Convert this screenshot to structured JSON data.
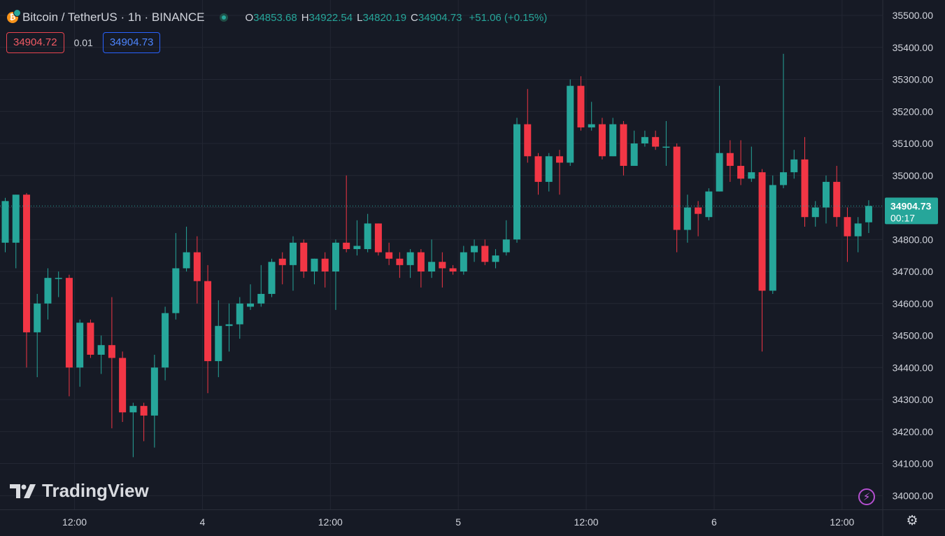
{
  "header": {
    "symbol_title": "Bitcoin / TetherUS · 1h · BINANCE",
    "coin_glyph": "₿",
    "coin_icon": "bitcoin-icon",
    "ohlc": {
      "open_label": "O",
      "open": "34853.68",
      "high_label": "H",
      "high": "34922.54",
      "low_label": "L",
      "low": "34820.19",
      "close_label": "C",
      "close": "34904.73",
      "change": "+51.06 (+0.15%)"
    }
  },
  "quotes": {
    "bid": "34904.72",
    "spread": "0.01",
    "ask": "34904.73"
  },
  "watermark": {
    "text": "TradingView"
  },
  "icons": {
    "lightning": "lightning-icon",
    "settings": "settings-icon"
  },
  "colors": {
    "background": "#161a25",
    "grid": "#232733",
    "up": "#26a69a",
    "down": "#f23645",
    "axis_text": "#d1d4dc",
    "last_price_bg": "#26a69a"
  },
  "chart_data": {
    "type": "candlestick",
    "title": "Bitcoin / TetherUS · 1h · BINANCE",
    "xlabel": "",
    "ylabel": "",
    "ylim": [
      33960,
      35510
    ],
    "y_ticks": [
      35500,
      35400,
      35300,
      35200,
      35100,
      35000,
      34900,
      34800,
      34700,
      34600,
      34500,
      34400,
      34300,
      34200,
      34100,
      34000
    ],
    "x_ticks": [
      {
        "label": "12:00",
        "index": 6.5
      },
      {
        "label": "4",
        "index": 18.5
      },
      {
        "label": "12:00",
        "index": 30.5
      },
      {
        "label": "5",
        "index": 42.5
      },
      {
        "label": "12:00",
        "index": 54.5
      },
      {
        "label": "6",
        "index": 66.5
      },
      {
        "label": "12:00",
        "index": 78.5
      }
    ],
    "grid": true,
    "last_price": {
      "value": 34904.73,
      "label": "34904.73",
      "countdown": "00:17"
    },
    "candles": [
      {
        "o": 34790,
        "h": 34930,
        "l": 34760,
        "c": 34920
      },
      {
        "o": 34790,
        "h": 34940,
        "l": 34710,
        "c": 34940
      },
      {
        "o": 34940,
        "h": 34945,
        "l": 34400,
        "c": 34510
      },
      {
        "o": 34510,
        "h": 34630,
        "l": 34370,
        "c": 34600
      },
      {
        "o": 34600,
        "h": 34710,
        "l": 34550,
        "c": 34680
      },
      {
        "o": 34680,
        "h": 34700,
        "l": 34620,
        "c": 34680
      },
      {
        "o": 34680,
        "h": 34690,
        "l": 34310,
        "c": 34400
      },
      {
        "o": 34400,
        "h": 34550,
        "l": 34340,
        "c": 34540
      },
      {
        "o": 34540,
        "h": 34550,
        "l": 34430,
        "c": 34440
      },
      {
        "o": 34440,
        "h": 34500,
        "l": 34380,
        "c": 34470
      },
      {
        "o": 34470,
        "h": 34620,
        "l": 34210,
        "c": 34430
      },
      {
        "o": 34430,
        "h": 34450,
        "l": 34230,
        "c": 34260
      },
      {
        "o": 34260,
        "h": 34290,
        "l": 34120,
        "c": 34280
      },
      {
        "o": 34280,
        "h": 34290,
        "l": 34170,
        "c": 34250
      },
      {
        "o": 34250,
        "h": 34440,
        "l": 34150,
        "c": 34400
      },
      {
        "o": 34400,
        "h": 34590,
        "l": 34360,
        "c": 34570
      },
      {
        "o": 34570,
        "h": 34820,
        "l": 34550,
        "c": 34710
      },
      {
        "o": 34710,
        "h": 34840,
        "l": 34700,
        "c": 34760
      },
      {
        "o": 34760,
        "h": 34810,
        "l": 34600,
        "c": 34670
      },
      {
        "o": 34670,
        "h": 34720,
        "l": 34320,
        "c": 34420
      },
      {
        "o": 34420,
        "h": 34610,
        "l": 34370,
        "c": 34530
      },
      {
        "o": 34530,
        "h": 34600,
        "l": 34450,
        "c": 34535
      },
      {
        "o": 34535,
        "h": 34620,
        "l": 34490,
        "c": 34600
      },
      {
        "o": 34590,
        "h": 34660,
        "l": 34580,
        "c": 34600
      },
      {
        "o": 34600,
        "h": 34720,
        "l": 34590,
        "c": 34630
      },
      {
        "o": 34630,
        "h": 34740,
        "l": 34620,
        "c": 34730
      },
      {
        "o": 34740,
        "h": 34760,
        "l": 34660,
        "c": 34720
      },
      {
        "o": 34720,
        "h": 34810,
        "l": 34640,
        "c": 34790
      },
      {
        "o": 34790,
        "h": 34800,
        "l": 34680,
        "c": 34700
      },
      {
        "o": 34700,
        "h": 34740,
        "l": 34660,
        "c": 34740
      },
      {
        "o": 34740,
        "h": 34760,
        "l": 34650,
        "c": 34700
      },
      {
        "o": 34700,
        "h": 34800,
        "l": 34580,
        "c": 34790
      },
      {
        "o": 34790,
        "h": 35000,
        "l": 34760,
        "c": 34770
      },
      {
        "o": 34770,
        "h": 34860,
        "l": 34750,
        "c": 34780
      },
      {
        "o": 34770,
        "h": 34880,
        "l": 34760,
        "c": 34850
      },
      {
        "o": 34850,
        "h": 34850,
        "l": 34750,
        "c": 34760
      },
      {
        "o": 34760,
        "h": 34790,
        "l": 34720,
        "c": 34740
      },
      {
        "o": 34740,
        "h": 34760,
        "l": 34680,
        "c": 34720
      },
      {
        "o": 34720,
        "h": 34770,
        "l": 34680,
        "c": 34760
      },
      {
        "o": 34760,
        "h": 34770,
        "l": 34650,
        "c": 34700
      },
      {
        "o": 34700,
        "h": 34800,
        "l": 34680,
        "c": 34730
      },
      {
        "o": 34730,
        "h": 34760,
        "l": 34650,
        "c": 34710
      },
      {
        "o": 34710,
        "h": 34720,
        "l": 34690,
        "c": 34700
      },
      {
        "o": 34700,
        "h": 34780,
        "l": 34690,
        "c": 34760
      },
      {
        "o": 34760,
        "h": 34800,
        "l": 34730,
        "c": 34780
      },
      {
        "o": 34780,
        "h": 34800,
        "l": 34720,
        "c": 34730
      },
      {
        "o": 34730,
        "h": 34770,
        "l": 34710,
        "c": 34750
      },
      {
        "o": 34760,
        "h": 34860,
        "l": 34750,
        "c": 34800
      },
      {
        "o": 34800,
        "h": 35180,
        "l": 34790,
        "c": 35160
      },
      {
        "o": 35160,
        "h": 35270,
        "l": 35040,
        "c": 35060
      },
      {
        "o": 35060,
        "h": 35070,
        "l": 34940,
        "c": 34980
      },
      {
        "o": 34980,
        "h": 35070,
        "l": 34950,
        "c": 35060
      },
      {
        "o": 35060,
        "h": 35080,
        "l": 34940,
        "c": 35040
      },
      {
        "o": 35040,
        "h": 35300,
        "l": 35030,
        "c": 35280
      },
      {
        "o": 35280,
        "h": 35310,
        "l": 35140,
        "c": 35150
      },
      {
        "o": 35150,
        "h": 35230,
        "l": 35140,
        "c": 35160
      },
      {
        "o": 35160,
        "h": 35180,
        "l": 35050,
        "c": 35060
      },
      {
        "o": 35060,
        "h": 35180,
        "l": 35060,
        "c": 35160
      },
      {
        "o": 35160,
        "h": 35170,
        "l": 35000,
        "c": 35030
      },
      {
        "o": 35030,
        "h": 35140,
        "l": 35030,
        "c": 35100
      },
      {
        "o": 35100,
        "h": 35140,
        "l": 35090,
        "c": 35120
      },
      {
        "o": 35120,
        "h": 35140,
        "l": 35080,
        "c": 35090
      },
      {
        "o": 35090,
        "h": 35170,
        "l": 35030,
        "c": 35090
      },
      {
        "o": 35090,
        "h": 35100,
        "l": 34760,
        "c": 34830
      },
      {
        "o": 34830,
        "h": 34940,
        "l": 34790,
        "c": 34900
      },
      {
        "o": 34900,
        "h": 34920,
        "l": 34810,
        "c": 34880
      },
      {
        "o": 34870,
        "h": 34960,
        "l": 34860,
        "c": 34950
      },
      {
        "o": 34950,
        "h": 35280,
        "l": 34950,
        "c": 35070
      },
      {
        "o": 35070,
        "h": 35110,
        "l": 34980,
        "c": 35030
      },
      {
        "o": 35030,
        "h": 35110,
        "l": 34970,
        "c": 34990
      },
      {
        "o": 34990,
        "h": 35090,
        "l": 34980,
        "c": 35010
      },
      {
        "o": 35010,
        "h": 35020,
        "l": 34450,
        "c": 34640
      },
      {
        "o": 34640,
        "h": 35000,
        "l": 34630,
        "c": 34970
      },
      {
        "o": 34970,
        "h": 35380,
        "l": 34960,
        "c": 35010
      },
      {
        "o": 35010,
        "h": 35080,
        "l": 34990,
        "c": 35050
      },
      {
        "o": 35050,
        "h": 35120,
        "l": 34840,
        "c": 34870
      },
      {
        "o": 34870,
        "h": 34920,
        "l": 34840,
        "c": 34900
      },
      {
        "o": 34900,
        "h": 35000,
        "l": 34850,
        "c": 34980
      },
      {
        "o": 34980,
        "h": 35030,
        "l": 34840,
        "c": 34870
      },
      {
        "o": 34870,
        "h": 34900,
        "l": 34730,
        "c": 34810
      },
      {
        "o": 34810,
        "h": 34870,
        "l": 34760,
        "c": 34850
      },
      {
        "o": 34853.68,
        "h": 34922.54,
        "l": 34820.19,
        "c": 34904.73
      }
    ]
  }
}
